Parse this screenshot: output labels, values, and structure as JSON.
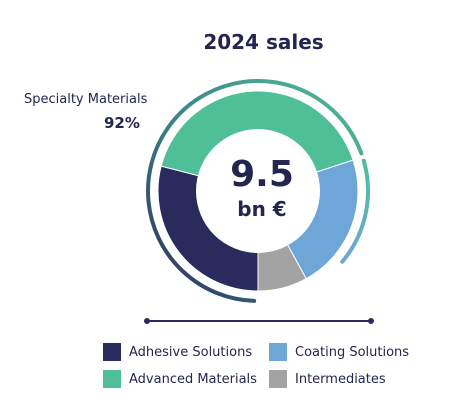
{
  "chart_data": {
    "type": "pie",
    "title": "2024 sales",
    "center_value": "9.5",
    "center_unit": "bn €",
    "categories": [
      "Adhesive Solutions",
      "Advanced Materials",
      "Coating Solutions",
      "Intermediates"
    ],
    "values": [
      29,
      41,
      22,
      8
    ],
    "colors": [
      "#2a2a5c",
      "#4fbf97",
      "#6ea6d8",
      "#a3a3a3"
    ],
    "annotation": {
      "label": "Specialty Materials",
      "value": "92%"
    },
    "legend": [
      {
        "label": "Adhesive Solutions",
        "color": "#2a2a5c"
      },
      {
        "label": "Coating Solutions",
        "color": "#6ea6d8"
      },
      {
        "label": "Advanced Materials",
        "color": "#4fbf97"
      },
      {
        "label": "Intermediates",
        "color": "#a3a3a3"
      }
    ],
    "legend_placement": "bottom"
  }
}
